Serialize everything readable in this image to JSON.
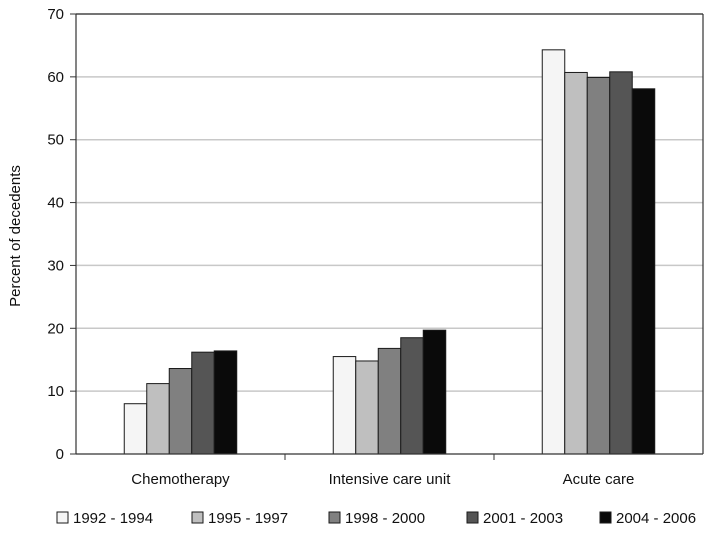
{
  "chart_data": {
    "type": "bar",
    "title": "",
    "xlabel": "",
    "ylabel": "Percent of decedents",
    "ylim": [
      0,
      70
    ],
    "yticks": [
      0,
      10,
      20,
      30,
      40,
      50,
      60,
      70
    ],
    "grid": true,
    "legend_position": "bottom",
    "categories": [
      "Chemotherapy",
      "Intensive care unit",
      "Acute care"
    ],
    "series": [
      {
        "name": "1992 - 1994",
        "color": "#f5f5f5",
        "values": [
          8.0,
          15.5,
          64.3
        ]
      },
      {
        "name": "1995 - 1997",
        "color": "#bfbfbf",
        "values": [
          11.2,
          14.8,
          60.7
        ]
      },
      {
        "name": "1998 - 2000",
        "color": "#808080",
        "values": [
          13.6,
          16.8,
          59.9
        ]
      },
      {
        "name": "2001 - 2003",
        "color": "#555555",
        "values": [
          16.2,
          18.5,
          60.8
        ]
      },
      {
        "name": "2004 - 2006",
        "color": "#0a0a0a",
        "values": [
          16.4,
          19.7,
          58.1
        ]
      }
    ]
  }
}
